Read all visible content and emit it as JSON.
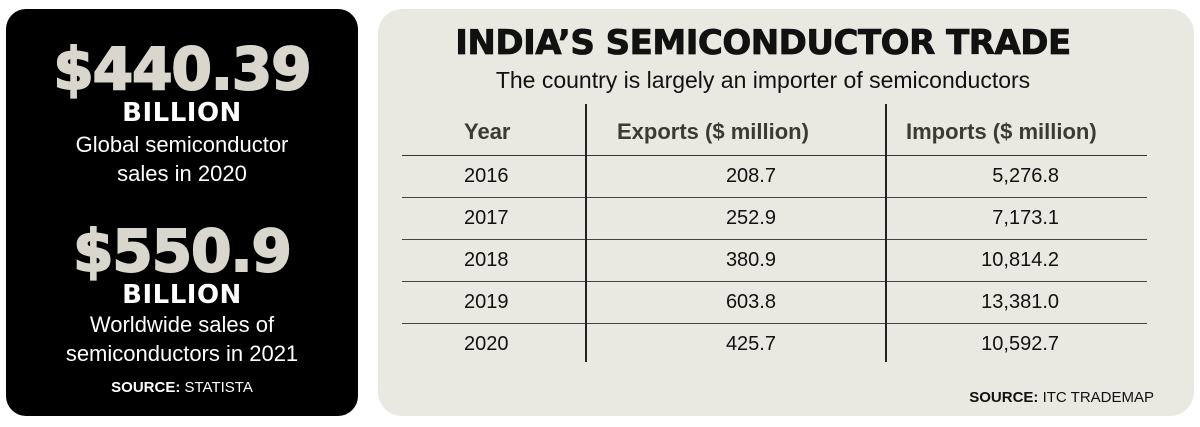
{
  "left": {
    "stat1": {
      "value": "$440.39",
      "unit": "BILLION",
      "caption_line1": "Global semiconductor",
      "caption_line2": "sales in 2020"
    },
    "stat2": {
      "value": "$550.9",
      "unit": "BILLION",
      "caption_line1": "Worldwide sales of",
      "caption_line2": "semiconductors in 2021"
    },
    "source_label": "SOURCE:",
    "source_value": "STATISTA"
  },
  "right": {
    "title": "INDIA’S SEMICONDUCTOR TRADE",
    "subtitle": "The country is largely an importer of semiconductors",
    "source_label": "SOURCE:",
    "source_value": "ITC TRADEMAP"
  },
  "colors": {
    "left_panel_bg": "#000000",
    "right_panel_bg": "#e9e8e1",
    "big_number_color": "#d9d6cd"
  },
  "chart_data": {
    "type": "table",
    "title": "INDIA’S SEMICONDUCTOR TRADE",
    "subtitle": "The country is largely an importer of semiconductors",
    "columns": [
      "Year",
      "Exports ($ million)",
      "Imports ($ million)"
    ],
    "rows": [
      [
        "2016",
        "208.7",
        "5,276.8"
      ],
      [
        "2017",
        "252.9",
        "7,173.1"
      ],
      [
        "2018",
        "380.9",
        "10,814.2"
      ],
      [
        "2019",
        "603.8",
        "13,381.0"
      ],
      [
        "2020",
        "425.7",
        "10,592.7"
      ]
    ]
  }
}
